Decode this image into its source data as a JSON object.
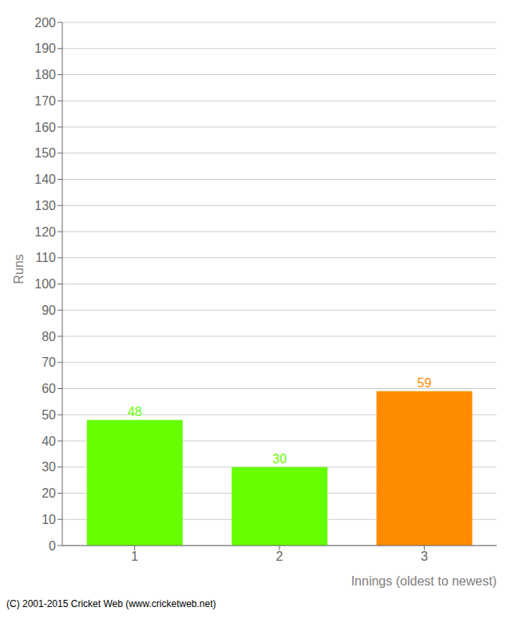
{
  "chart_data": {
    "type": "bar",
    "categories": [
      "1",
      "2",
      "3"
    ],
    "values": [
      48,
      30,
      59
    ],
    "colors": [
      "#66ff00",
      "#66ff00",
      "#ff8c00"
    ],
    "ylabel": "Runs",
    "xlabel": "Innings (oldest to newest)",
    "annotations": [
      "(C) 2001-2015 Cricket Web (www.cricketweb.net)"
    ],
    "ylim": [
      0,
      200
    ],
    "yticks": [
      0,
      10,
      20,
      30,
      40,
      50,
      60,
      70,
      80,
      90,
      100,
      110,
      120,
      130,
      140,
      150,
      160,
      170,
      180,
      190,
      200
    ],
    "grid": true,
    "data_labels": true
  }
}
